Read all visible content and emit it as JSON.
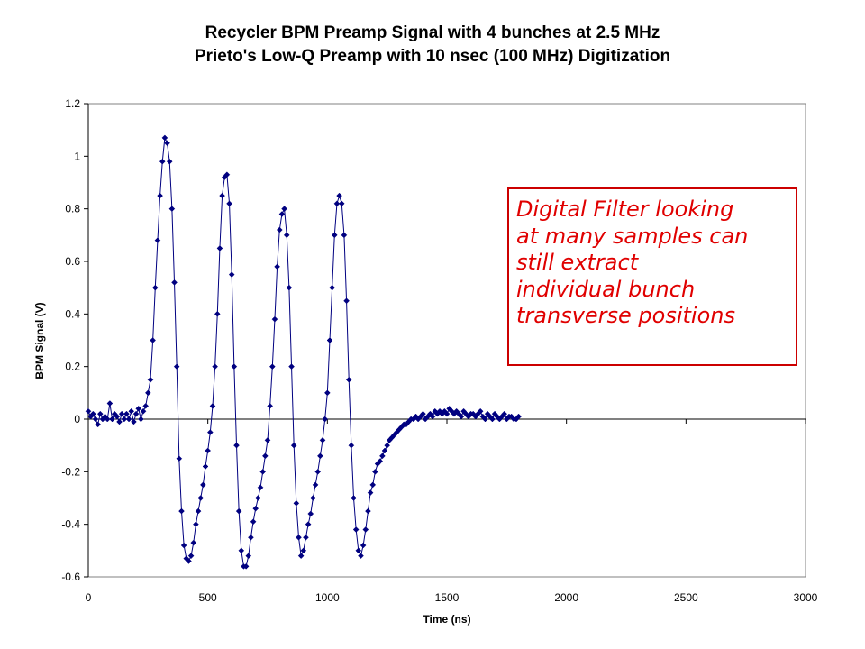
{
  "chart_data": {
    "type": "line",
    "title": "Recycler BPM Preamp Signal with 4 bunches at 2.5 MHz",
    "subtitle": "Prieto's Low-Q Preamp with 10 nsec (100 MHz) Digitization",
    "xlabel": "Time (ns)",
    "ylabel": "BPM Signal (V)",
    "xlim": [
      0,
      3000
    ],
    "ylim": [
      -0.6,
      1.2
    ],
    "x_ticks": [
      "0",
      "500",
      "1000",
      "1500",
      "2000",
      "2500",
      "3000"
    ],
    "y_ticks": [
      "-0.6",
      "-0.4",
      "-0.2",
      "0",
      "0.2",
      "0.4",
      "0.6",
      "0.8",
      "1",
      "1.2"
    ],
    "grid": false,
    "legend": "none",
    "series_color": "#000080",
    "marker": "diamond",
    "sample_interval_ns": 10,
    "series": [
      {
        "values": [
          0.03,
          0.01,
          0.02,
          0.0,
          -0.02,
          0.02,
          0.0,
          0.01,
          0.0,
          0.06,
          0.0,
          0.02,
          0.01,
          -0.01,
          0.02,
          0.0,
          0.02,
          0.0,
          0.03,
          -0.01,
          0.02,
          0.04,
          0.0,
          0.03,
          0.05,
          0.1,
          0.15,
          0.3,
          0.5,
          0.68,
          0.85,
          0.98,
          1.07,
          1.05,
          0.98,
          0.8,
          0.52,
          0.2,
          -0.15,
          -0.35,
          -0.48,
          -0.53,
          -0.54,
          -0.52,
          -0.47,
          -0.4,
          -0.35,
          -0.3,
          -0.25,
          -0.18,
          -0.12,
          -0.05,
          0.05,
          0.2,
          0.4,
          0.65,
          0.85,
          0.92,
          0.93,
          0.82,
          0.55,
          0.2,
          -0.1,
          -0.35,
          -0.5,
          -0.56,
          -0.56,
          -0.52,
          -0.45,
          -0.39,
          -0.34,
          -0.3,
          -0.26,
          -0.2,
          -0.14,
          -0.08,
          0.05,
          0.2,
          0.38,
          0.58,
          0.72,
          0.78,
          0.8,
          0.7,
          0.5,
          0.2,
          -0.1,
          -0.32,
          -0.45,
          -0.52,
          -0.5,
          -0.45,
          -0.4,
          -0.36,
          -0.3,
          -0.25,
          -0.2,
          -0.14,
          -0.08,
          0.0,
          0.1,
          0.3,
          0.5,
          0.7,
          0.82,
          0.85,
          0.82,
          0.7,
          0.45,
          0.15,
          -0.1,
          -0.3,
          -0.42,
          -0.5,
          -0.52,
          -0.48,
          -0.42,
          -0.35,
          -0.28,
          -0.25,
          -0.2,
          -0.17,
          -0.16,
          -0.14,
          -0.12,
          -0.1,
          -0.08,
          -0.07,
          -0.06,
          -0.05,
          -0.04,
          -0.03,
          -0.02,
          -0.02,
          -0.01,
          0.0,
          0.0,
          0.01,
          0.0,
          0.01,
          0.02,
          0.0,
          0.01,
          0.02,
          0.01,
          0.03,
          0.02,
          0.03,
          0.02,
          0.03,
          0.02,
          0.04,
          0.03,
          0.02,
          0.03,
          0.02,
          0.01,
          0.03,
          0.02,
          0.01,
          0.02,
          0.02,
          0.01,
          0.02,
          0.03,
          0.01,
          0.0,
          0.02,
          0.01,
          0.0,
          0.02,
          0.01,
          0.0,
          0.01,
          0.02,
          0.0,
          0.01,
          0.01,
          0.0,
          0.0,
          0.01
        ]
      }
    ],
    "annotation": {
      "lines": [
        "Digital Filter looking",
        "at many samples can",
        "still extract",
        "individual bunch",
        "transverse positions"
      ],
      "text_color": "#e00000",
      "border_color": "#cc0000"
    }
  }
}
